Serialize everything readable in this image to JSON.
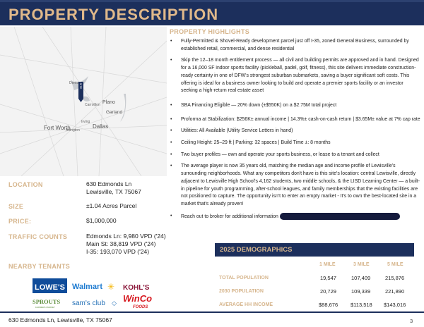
{
  "header": {
    "title": "PROPERTY DESCRIPTION"
  },
  "map": {
    "labels": [
      "Denton",
      "Carrollton",
      "Plano",
      "Garland",
      "Irving",
      "Fort Worth",
      "Arlington",
      "Dallas"
    ],
    "marker": "SITE"
  },
  "details": [
    {
      "label": "LOCATION",
      "value": [
        "630 Edmonds Ln",
        "Lewisville, TX 75067"
      ]
    },
    {
      "label": "SIZE",
      "value": [
        "±1.04 Acres Parcel"
      ]
    },
    {
      "label": "PRICE:",
      "value": [
        "$1,000,000"
      ]
    },
    {
      "label": "TRAFFIC COUNTS",
      "value": [
        "Edmonds Ln: 9,980 VPD ('24)",
        "Main St: 38,819 VPD ('24)",
        "I-35: 193,070 VPD ('24)"
      ]
    }
  ],
  "tenants": {
    "title": "NEARBY TENANTS",
    "logos": [
      "LOWE'S",
      "Walmart",
      "KOHL'S",
      "SPROUTS",
      "FARMERS MARKET",
      "sam's club",
      "WinCo",
      "FOODS"
    ]
  },
  "highlights": {
    "title": "PROPERTY HIGHLIGHTS",
    "items": [
      "Fully-Permitted & Shovel-Ready development parcel just off I-35, zoned General Business, surrounded by established retail, commercial, and dense residential",
      "Skip the 12–18 month entitlement process — all civil and building permits are approved and in hand. Designed for a 16,000 SF indoor sports facility (pickleball, padel, golf, fitness), this site delivers immediate construction-ready certainty in one of DFW's strongest suburban submarkets, saving a buyer significant soft costs. This offering is ideal for a business owner looking to build and operate a premier sports facility or an investor seeking a high-return real estate asset",
      "SBA Financing Eligible — 20% down (±$550K) on a $2.75M total project",
      "Proforma at Stabilization: $256K± annual income | 14.3%± cash-on-cash return | $3.65M± value at 7% cap rate",
      "Utilities: All Available (Utility Service Letters in hand)",
      "Ceiling Height: 25–29 ft | Parking: 32 spaces | Build Time ±: 8 months",
      "Two buyer profiles — own and operate your sports business, or lease to a tenant and collect",
      "The average player is now 35 years old, matching the median age and income profile of Lewisville's surrounding neighborhoods. What any competitors don't have is this site's location: central Lewisville, directly adjacent to Lewisville High School's 4,162 students, two middle schools, & the LISD Learning Center — a built-in pipeline for youth programming, after-school leagues, and family memberships that the existing facilities are not positioned to capture. The opportunity isn't to enter an empty market - It's to own the best-located site in a market that's already proven!",
      "Reach out to broker for additional information"
    ]
  },
  "demographics": {
    "title": "2025 DEMOGRAPHICS",
    "columns": [
      "1 MILE",
      "3 MILE",
      "5 MILE"
    ],
    "rows": [
      {
        "label": "TOTAL POPULATION",
        "values": [
          "19,547",
          "107,409",
          "215,876"
        ]
      },
      {
        "label": "2030 POPULATION",
        "values": [
          "20,729",
          "109,339",
          "221,890"
        ]
      },
      {
        "label": "AVERAGE HH INCOME",
        "values": [
          "$88,676",
          "$113,518",
          "$143,016"
        ]
      }
    ]
  },
  "footer": {
    "address": "630 Edmonds Ln, Lewisville, TX 75067",
    "page": "3"
  },
  "colors": {
    "navy": "#1c2f5c",
    "gold": "#d6b58c"
  }
}
